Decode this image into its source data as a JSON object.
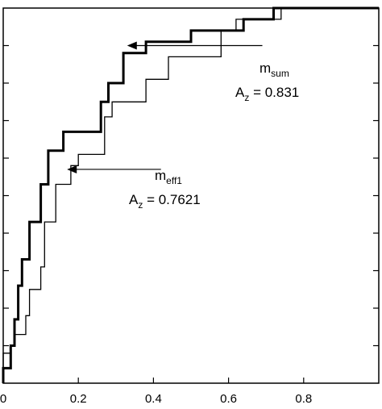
{
  "chart_data": {
    "type": "line",
    "title": "",
    "xlabel": "",
    "ylabel": "",
    "xlim": [
      0,
      1
    ],
    "ylim": [
      0,
      1
    ],
    "grid": false,
    "x_ticks": [
      0,
      0.2,
      0.4,
      0.6,
      0.8
    ],
    "x_tick_labels": [
      "0",
      "0.2",
      "0.4",
      "0.6",
      "0.8"
    ],
    "y_ticks": [
      0.1,
      0.2,
      0.3,
      0.4,
      0.5,
      0.6,
      0.7,
      0.8,
      0.9
    ],
    "series": [
      {
        "name": "m_sum",
        "line_weight": "bold",
        "color": "#000000",
        "points": [
          [
            0,
            0
          ],
          [
            0,
            0.04
          ],
          [
            0.02,
            0.04
          ],
          [
            0.02,
            0.1
          ],
          [
            0.03,
            0.1
          ],
          [
            0.03,
            0.17
          ],
          [
            0.04,
            0.17
          ],
          [
            0.04,
            0.26
          ],
          [
            0.05,
            0.26
          ],
          [
            0.05,
            0.33
          ],
          [
            0.07,
            0.33
          ],
          [
            0.07,
            0.43
          ],
          [
            0.1,
            0.43
          ],
          [
            0.1,
            0.53
          ],
          [
            0.12,
            0.53
          ],
          [
            0.12,
            0.62
          ],
          [
            0.16,
            0.62
          ],
          [
            0.16,
            0.67
          ],
          [
            0.26,
            0.67
          ],
          [
            0.26,
            0.75
          ],
          [
            0.28,
            0.75
          ],
          [
            0.28,
            0.8
          ],
          [
            0.32,
            0.8
          ],
          [
            0.32,
            0.88
          ],
          [
            0.38,
            0.88
          ],
          [
            0.38,
            0.91
          ],
          [
            0.5,
            0.91
          ],
          [
            0.5,
            0.94
          ],
          [
            0.64,
            0.94
          ],
          [
            0.64,
            0.97
          ],
          [
            0.72,
            0.97
          ],
          [
            0.72,
            1.0
          ],
          [
            1.0,
            1.0
          ]
        ]
      },
      {
        "name": "m_eff1",
        "line_weight": "thin",
        "color": "#000000",
        "points": [
          [
            0,
            0
          ],
          [
            0,
            0.08
          ],
          [
            0.02,
            0.08
          ],
          [
            0.02,
            0.1
          ],
          [
            0.03,
            0.1
          ],
          [
            0.03,
            0.13
          ],
          [
            0.06,
            0.13
          ],
          [
            0.06,
            0.18
          ],
          [
            0.07,
            0.18
          ],
          [
            0.07,
            0.25
          ],
          [
            0.1,
            0.25
          ],
          [
            0.1,
            0.31
          ],
          [
            0.11,
            0.31
          ],
          [
            0.11,
            0.43
          ],
          [
            0.14,
            0.43
          ],
          [
            0.14,
            0.53
          ],
          [
            0.18,
            0.53
          ],
          [
            0.18,
            0.58
          ],
          [
            0.2,
            0.58
          ],
          [
            0.2,
            0.61
          ],
          [
            0.27,
            0.61
          ],
          [
            0.27,
            0.71
          ],
          [
            0.29,
            0.71
          ],
          [
            0.29,
            0.75
          ],
          [
            0.38,
            0.75
          ],
          [
            0.38,
            0.81
          ],
          [
            0.44,
            0.81
          ],
          [
            0.44,
            0.87
          ],
          [
            0.58,
            0.87
          ],
          [
            0.58,
            0.94
          ],
          [
            0.62,
            0.94
          ],
          [
            0.62,
            0.97
          ],
          [
            0.74,
            0.97
          ],
          [
            0.74,
            1.0
          ],
          [
            1.0,
            1.0
          ]
        ]
      }
    ],
    "annotations": [
      {
        "label_main": "m",
        "label_sub": "sum",
        "az_main": "A",
        "az_sub": "z",
        "az_value": " = 0.831",
        "arrow_from": [
          0.69,
          0.9
        ],
        "arrow_to": [
          0.33,
          0.9
        ]
      },
      {
        "label_main": "m",
        "label_sub": "eff1",
        "az_main": "A",
        "az_sub": "z",
        "az_value": " = 0.7621",
        "arrow_from": [
          0.42,
          0.57
        ],
        "arrow_to": [
          0.17,
          0.57
        ]
      }
    ]
  }
}
